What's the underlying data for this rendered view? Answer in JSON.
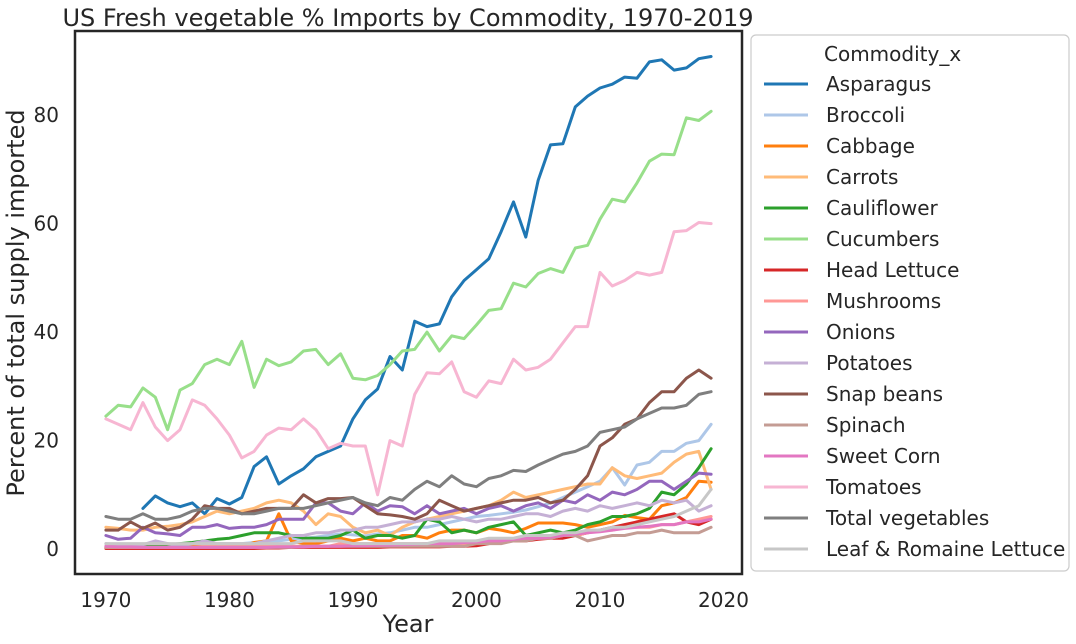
{
  "chart_data": {
    "type": "line",
    "title": "US Fresh vegetable % Imports by Commodity, 1970-2019",
    "xlabel": "Year",
    "ylabel": "Percent of total supply imported",
    "xlim": [
      1967.5,
      2021.5
    ],
    "ylim": [
      -4.6,
      95.5
    ],
    "xticks": [
      1970,
      1980,
      1990,
      2000,
      2010,
      2020
    ],
    "yticks": [
      0,
      20,
      40,
      60,
      80
    ],
    "grid": false,
    "legend": {
      "title": "Commodity_x",
      "position": "outside-right"
    },
    "series": [
      {
        "name": "Asparagus",
        "color": "#1f77b4",
        "x_start": 1973,
        "values": [
          7.5,
          9.8,
          8.5,
          7.8,
          8.5,
          6.5,
          9.3,
          8.3,
          9.5,
          15.2,
          17.0,
          12.0,
          13.5,
          14.8,
          17.0,
          18.0,
          19.0,
          24.0,
          27.5,
          29.5,
          35.5,
          33.0,
          42.0,
          41.0,
          41.5,
          46.5,
          49.5,
          51.5,
          53.5,
          58.5,
          64.0,
          57.5,
          68.0,
          74.5,
          74.7,
          81.5,
          83.5,
          85.0,
          85.7,
          87.0,
          86.8,
          89.8,
          90.2,
          88.3,
          88.7,
          90.4,
          90.8
        ]
      },
      {
        "name": "Broccoli",
        "color": "#aec7e8",
        "x_start": 1970,
        "values": [
          0.5,
          0.4,
          0.3,
          0.3,
          0.4,
          0.3,
          0.4,
          0.5,
          0.5,
          0.6,
          0.8,
          1.0,
          1.2,
          1.3,
          1.5,
          1.8,
          2.0,
          2.2,
          2.5,
          2.8,
          2.6,
          2.4,
          2.8,
          3.0,
          3.5,
          4.0,
          4.0,
          4.5,
          5.0,
          5.5,
          6.0,
          6.2,
          6.5,
          6.8,
          7.2,
          7.8,
          8.5,
          9.5,
          10.5,
          11.5,
          12.5,
          15.0,
          11.8,
          15.5,
          16.0,
          18.0,
          18.0,
          19.5,
          20.0,
          23.0
        ]
      },
      {
        "name": "Cabbage",
        "color": "#ff7f0e",
        "x_start": 1970,
        "values": [
          0.4,
          0.3,
          0.3,
          0.2,
          0.3,
          0.4,
          0.5,
          0.5,
          0.5,
          0.6,
          0.8,
          0.5,
          1.2,
          1.5,
          6.5,
          1.5,
          1.0,
          1.0,
          1.5,
          2.0,
          1.5,
          2.0,
          1.5,
          1.5,
          2.5,
          2.5,
          2.0,
          3.0,
          3.5,
          3.5,
          3.0,
          3.8,
          3.5,
          3.0,
          3.8,
          4.8,
          4.8,
          4.8,
          4.5,
          4.0,
          4.5,
          5.0,
          6.2,
          5.8,
          5.5,
          8.0,
          8.5,
          9.5,
          12.5,
          12.3
        ]
      },
      {
        "name": "Carrots",
        "color": "#ffbb78",
        "x_start": 1970,
        "values": [
          4.0,
          3.8,
          3.5,
          3.5,
          4.0,
          4.2,
          4.5,
          5.0,
          6.0,
          7.0,
          6.5,
          7.0,
          7.5,
          8.5,
          9.0,
          8.5,
          7.0,
          4.5,
          6.5,
          6.0,
          4.0,
          3.0,
          3.5,
          2.5,
          4.0,
          5.0,
          5.5,
          6.0,
          6.5,
          7.0,
          7.5,
          8.0,
          9.0,
          10.5,
          9.5,
          10.0,
          10.5,
          11.0,
          11.5,
          12.0,
          12.0,
          15.0,
          13.5,
          13.0,
          13.5,
          14.0,
          16.0,
          17.5,
          18.0,
          11.0
        ]
      },
      {
        "name": "Cauliflower",
        "color": "#2ca02c",
        "x_start": 1970,
        "values": [
          0.3,
          0.3,
          0.4,
          0.5,
          0.5,
          0.8,
          1.0,
          1.2,
          1.5,
          1.8,
          2.0,
          2.5,
          3.0,
          3.0,
          3.0,
          2.5,
          2.0,
          2.0,
          2.0,
          2.5,
          3.5,
          2.0,
          2.5,
          2.5,
          2.0,
          2.5,
          5.5,
          5.0,
          3.0,
          3.5,
          3.0,
          4.0,
          4.5,
          5.0,
          2.5,
          3.0,
          3.5,
          3.0,
          3.5,
          4.5,
          5.0,
          6.0,
          6.0,
          6.5,
          7.5,
          10.5,
          10.0,
          12.0,
          15.0,
          18.5
        ]
      },
      {
        "name": "Cucumbers",
        "color": "#98df8a",
        "x_start": 1970,
        "values": [
          24.5,
          26.5,
          26.2,
          29.7,
          28.0,
          22.0,
          29.3,
          30.5,
          34.0,
          35.0,
          34.0,
          38.3,
          29.8,
          35.0,
          33.8,
          34.5,
          36.5,
          36.8,
          34.0,
          36.0,
          31.5,
          31.2,
          32.0,
          34.0,
          36.5,
          36.8,
          40.0,
          36.5,
          39.3,
          38.8,
          41.3,
          44.0,
          44.3,
          49.0,
          48.3,
          50.8,
          51.7,
          51.0,
          55.5,
          56.0,
          60.8,
          64.5,
          64.0,
          67.5,
          71.5,
          72.8,
          72.7,
          79.5,
          79.0,
          80.7
        ]
      },
      {
        "name": "Head Lettuce",
        "color": "#d62728",
        "x_start": 1970,
        "values": [
          0.1,
          0.1,
          0.1,
          0.1,
          0.1,
          0.1,
          0.1,
          0.1,
          0.1,
          0.1,
          0.1,
          0.1,
          0.1,
          0.2,
          0.2,
          0.3,
          0.3,
          0.3,
          0.3,
          0.3,
          0.3,
          0.3,
          0.3,
          0.4,
          0.4,
          0.4,
          0.4,
          0.4,
          0.5,
          0.5,
          0.6,
          1.0,
          1.5,
          1.5,
          1.5,
          1.8,
          2.0,
          2.0,
          2.5,
          3.0,
          3.5,
          4.0,
          4.5,
          5.0,
          5.5,
          6.0,
          6.5,
          5.0,
          4.5,
          5.5
        ]
      },
      {
        "name": "Mushrooms",
        "color": "#ff9896",
        "x_start": 1970,
        "values": [
          0.3,
          0.3,
          0.3,
          0.3,
          0.3,
          0.3,
          0.3,
          0.3,
          0.5,
          0.5,
          0.5,
          0.5,
          0.5,
          0.5,
          0.5,
          0.5,
          0.5,
          0.5,
          0.5,
          1.0,
          1.0,
          1.0,
          1.0,
          1.0,
          1.0,
          1.0,
          1.0,
          1.0,
          1.0,
          1.0,
          1.5,
          1.5,
          1.5,
          1.5,
          2.0,
          2.0,
          2.0,
          2.5,
          2.5,
          3.0,
          3.5,
          3.5,
          4.0,
          4.0,
          4.0,
          4.5,
          4.5,
          5.0,
          5.5,
          6.0
        ]
      },
      {
        "name": "Onions",
        "color": "#9467bd",
        "x_start": 1970,
        "values": [
          2.5,
          1.8,
          2.0,
          4.0,
          3.0,
          2.8,
          2.5,
          4.0,
          4.0,
          4.5,
          3.8,
          4.0,
          4.0,
          4.5,
          5.5,
          5.5,
          5.5,
          8.5,
          8.5,
          7.0,
          6.5,
          8.5,
          7.0,
          8.0,
          7.8,
          6.5,
          8.0,
          6.5,
          7.0,
          7.5,
          6.5,
          7.5,
          8.0,
          7.0,
          8.0,
          8.5,
          7.5,
          9.0,
          8.5,
          10.0,
          9.0,
          10.5,
          10.0,
          11.0,
          12.5,
          12.5,
          11.0,
          12.5,
          14.0,
          13.8
        ]
      },
      {
        "name": "Potatoes",
        "color": "#c5b0d5",
        "x_start": 1970,
        "values": [
          1.0,
          0.8,
          0.5,
          0.8,
          1.5,
          1.0,
          0.5,
          1.0,
          1.5,
          1.0,
          1.0,
          1.0,
          1.0,
          1.5,
          2.0,
          2.5,
          2.5,
          3.0,
          3.0,
          3.5,
          3.5,
          4.0,
          4.0,
          4.5,
          5.0,
          5.0,
          5.5,
          5.5,
          6.0,
          5.5,
          5.0,
          5.5,
          5.5,
          6.0,
          6.5,
          6.5,
          6.0,
          7.0,
          7.5,
          7.0,
          8.0,
          7.5,
          8.0,
          8.5,
          8.0,
          9.0,
          8.5,
          9.0,
          7.0,
          8.0
        ]
      },
      {
        "name": "Snap beans",
        "color": "#8c564b",
        "x_start": 1970,
        "values": [
          3.5,
          3.5,
          5.0,
          3.8,
          4.8,
          3.5,
          4.0,
          5.5,
          8.0,
          7.5,
          7.5,
          6.5,
          7.0,
          7.5,
          7.5,
          7.5,
          10.0,
          8.5,
          9.3,
          9.3,
          9.5,
          8.0,
          6.5,
          6.3,
          6.0,
          5.5,
          6.5,
          9.0,
          8.0,
          7.0,
          7.5,
          8.0,
          8.5,
          9.0,
          9.0,
          9.5,
          8.5,
          9.0,
          11.0,
          13.5,
          19.0,
          20.5,
          23.0,
          24.0,
          27.0,
          29.0,
          29.0,
          31.5,
          33.0,
          31.5
        ]
      },
      {
        "name": "Spinach",
        "color": "#c49c94",
        "x_start": 1970,
        "values": [
          0.3,
          0.3,
          0.3,
          0.3,
          0.3,
          0.3,
          0.3,
          0.3,
          0.3,
          0.3,
          0.3,
          0.3,
          0.3,
          0.3,
          0.3,
          0.3,
          0.5,
          0.5,
          0.5,
          0.5,
          0.5,
          0.5,
          0.5,
          0.5,
          0.5,
          0.5,
          0.5,
          0.5,
          0.5,
          0.5,
          1.0,
          1.0,
          1.0,
          1.5,
          1.5,
          2.0,
          2.0,
          2.5,
          2.5,
          1.5,
          2.0,
          2.5,
          2.5,
          3.0,
          3.0,
          3.5,
          3.0,
          3.0,
          3.0,
          4.0
        ]
      },
      {
        "name": "Sweet Corn",
        "color": "#e377c2",
        "x_start": 1970,
        "values": [
          0.5,
          0.4,
          0.4,
          0.3,
          0.3,
          0.3,
          0.3,
          0.3,
          0.3,
          0.3,
          0.3,
          0.3,
          0.3,
          0.3,
          0.4,
          0.4,
          0.4,
          0.5,
          0.5,
          0.5,
          0.6,
          0.6,
          0.7,
          0.7,
          0.8,
          0.9,
          1.0,
          1.0,
          1.0,
          1.2,
          1.3,
          1.5,
          1.5,
          1.8,
          2.0,
          2.0,
          2.2,
          2.5,
          2.8,
          3.0,
          3.2,
          3.5,
          3.8,
          4.0,
          4.2,
          4.5,
          4.5,
          5.0,
          5.0,
          5.5
        ]
      },
      {
        "name": "Tomatoes",
        "color": "#f7b6d2",
        "x_start": 1970,
        "values": [
          24.0,
          23.0,
          22.0,
          27.0,
          22.5,
          20.0,
          22.0,
          27.5,
          26.5,
          24.0,
          21.0,
          16.8,
          18.0,
          21.0,
          22.3,
          22.0,
          24.0,
          22.0,
          18.5,
          19.5,
          19.0,
          19.0,
          10.0,
          20.0,
          19.0,
          28.5,
          32.5,
          32.3,
          34.5,
          29.0,
          28.0,
          31.0,
          30.5,
          35.0,
          33.0,
          33.5,
          35.0,
          38.0,
          41.0,
          41.0,
          51.0,
          48.5,
          49.5,
          51.0,
          50.5,
          51.0,
          58.5,
          58.7,
          60.2,
          60.0
        ]
      },
      {
        "name": "Total vegetables",
        "color": "#7f7f7f",
        "x_start": 1970,
        "values": [
          6.0,
          5.5,
          5.5,
          6.5,
          5.5,
          5.5,
          6.0,
          7.0,
          7.5,
          7.5,
          7.0,
          6.5,
          6.5,
          7.0,
          7.5,
          7.5,
          7.5,
          8.0,
          8.5,
          9.0,
          9.5,
          8.5,
          8.0,
          9.5,
          9.0,
          11.0,
          12.5,
          11.5,
          13.5,
          12.0,
          11.5,
          13.0,
          13.5,
          14.5,
          14.3,
          15.5,
          16.5,
          17.5,
          18.0,
          19.0,
          21.5,
          22.0,
          22.5,
          24.0,
          25.0,
          26.0,
          26.0,
          26.5,
          28.5,
          29.0
        ]
      },
      {
        "name": "Leaf & Romaine Lettuce",
        "color": "#c7c7c7",
        "x_start": 1970,
        "values": [
          1.0,
          1.0,
          1.0,
          1.0,
          1.0,
          1.0,
          1.0,
          1.0,
          1.0,
          1.0,
          1.0,
          1.0,
          1.0,
          1.0,
          1.0,
          1.0,
          1.5,
          1.5,
          1.5,
          1.5,
          1.0,
          1.0,
          1.0,
          1.0,
          1.0,
          1.0,
          1.0,
          1.5,
          1.5,
          1.5,
          1.5,
          2.0,
          2.0,
          2.0,
          2.5,
          2.5,
          2.5,
          3.0,
          3.0,
          3.5,
          3.5,
          4.0,
          4.0,
          4.5,
          5.0,
          5.5,
          6.0,
          7.0,
          8.0,
          11.0
        ]
      }
    ]
  }
}
